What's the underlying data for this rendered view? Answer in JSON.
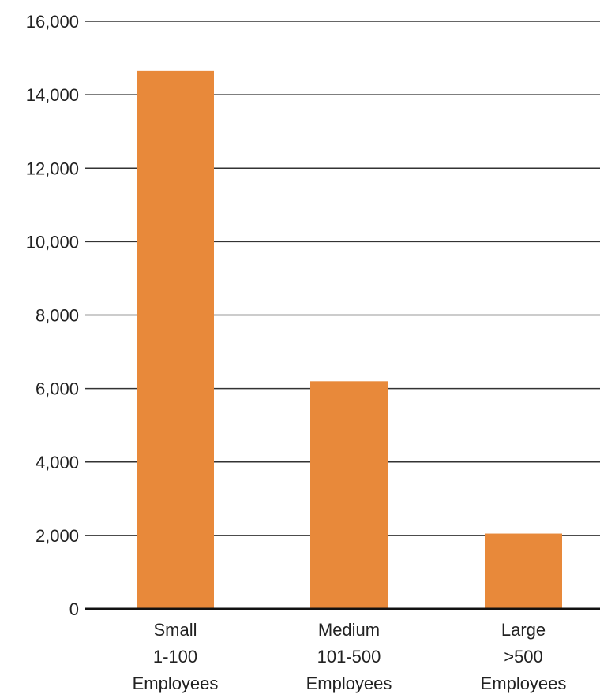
{
  "chart_data": {
    "type": "bar",
    "title": "",
    "xlabel": "",
    "ylabel": "",
    "categories": [
      [
        "Small",
        "1-100",
        "Employees"
      ],
      [
        "Medium",
        "101-500",
        "Employees"
      ],
      [
        "Large",
        ">500",
        "Employees"
      ]
    ],
    "values": [
      14650,
      6200,
      2050
    ],
    "ylim": [
      0,
      16000
    ],
    "yticks": [
      "0",
      "2,000",
      "4,000",
      "6,000",
      "8,000",
      "10,000",
      "12,000",
      "14,000",
      "16,000"
    ],
    "grid": true,
    "legend": "none",
    "colors": {
      "bar": "#E8893A",
      "grid": "#333333",
      "axis": "#111111"
    }
  }
}
